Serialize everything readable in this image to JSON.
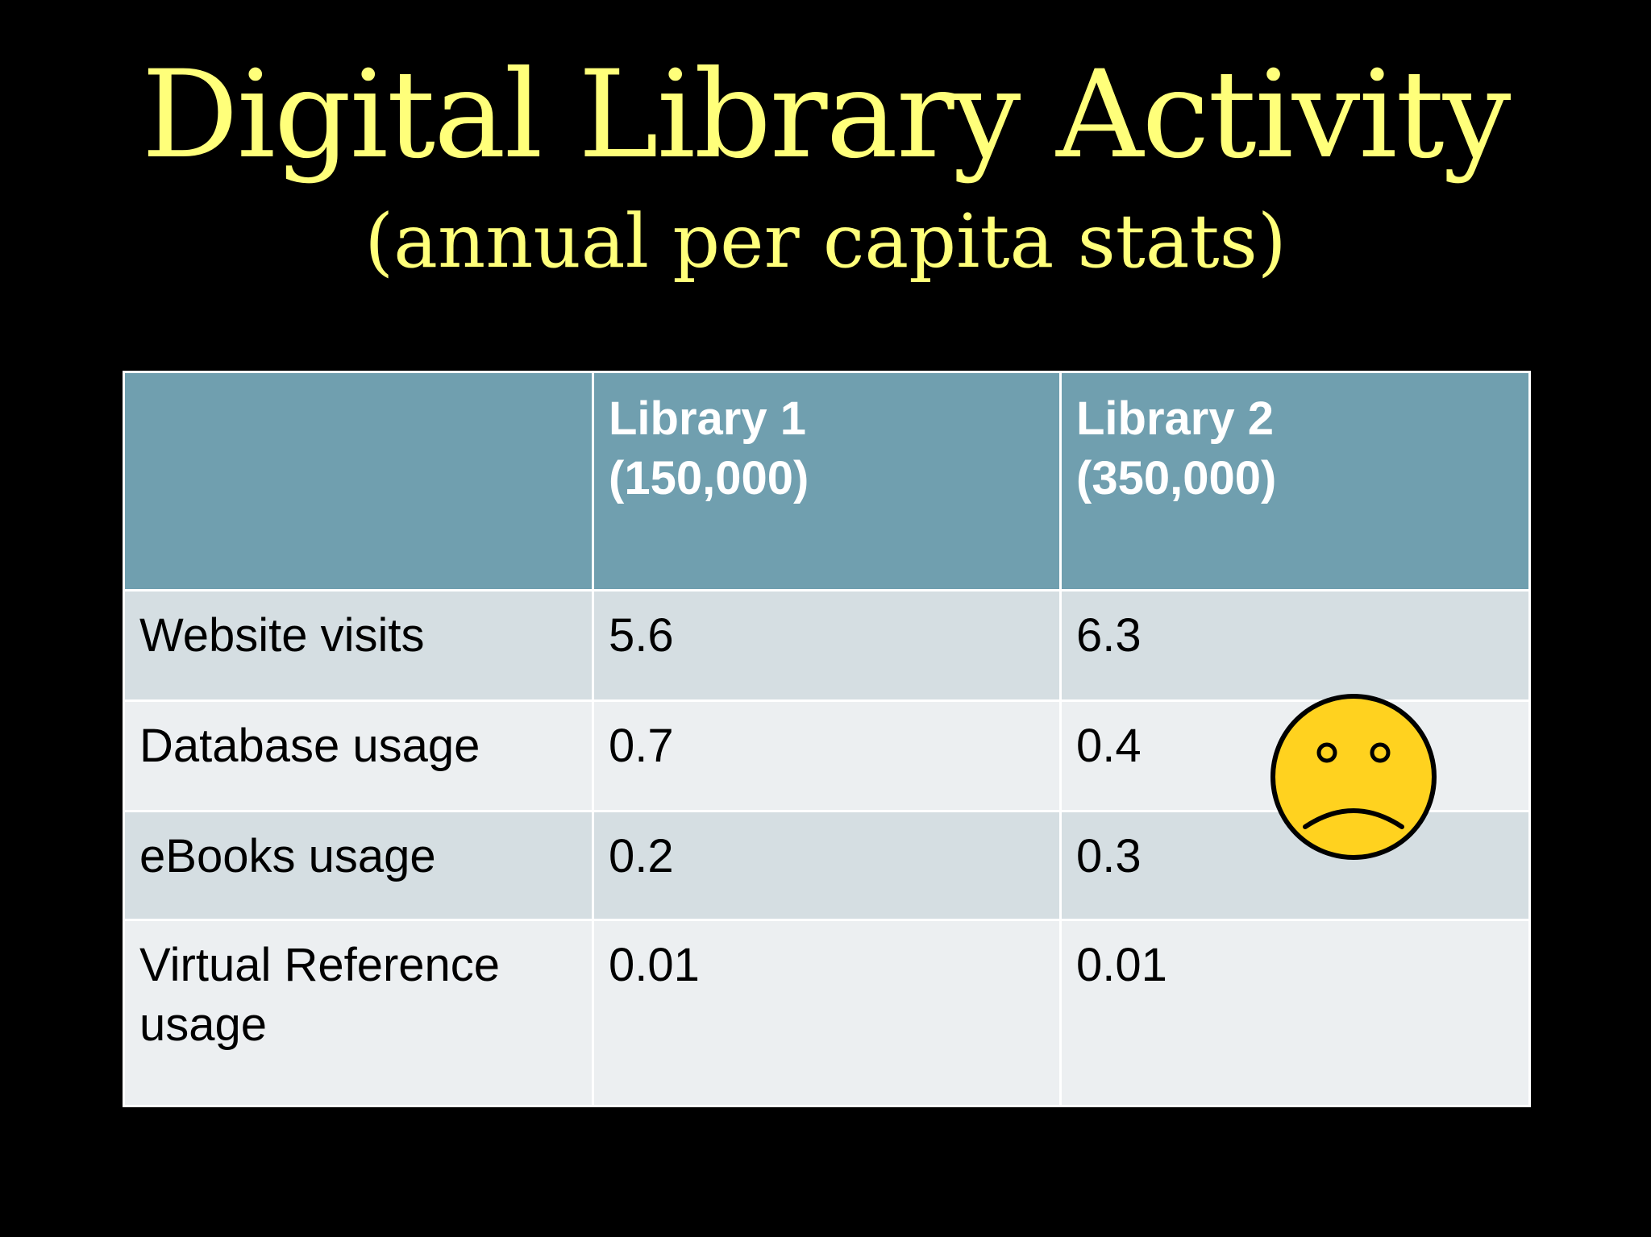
{
  "slide": {
    "title": "Digital Library Activity",
    "subtitle": "(annual per capita stats)"
  },
  "table": {
    "headers": [
      "",
      "Library 1\n(150,000)",
      "Library 2\n(350,000)"
    ],
    "header_lines": {
      "lib1_line1": "Library 1",
      "lib1_line2": "(150,000)",
      "lib2_line1": "Library 2",
      "lib2_line2": "(350,000)"
    },
    "rows": [
      {
        "metric": "Website visits",
        "library1": "5.6",
        "library2": "6.3"
      },
      {
        "metric": "Database usage",
        "library1": "0.7",
        "library2": "0.4"
      },
      {
        "metric": "eBooks usage",
        "library1": "0.2",
        "library2": "0.3"
      },
      {
        "metric_line1": "Virtual Reference",
        "metric_line2": "usage",
        "library1": "0.01",
        "library2": "0.01"
      }
    ]
  },
  "decor": {
    "icon": "frown-face-icon",
    "colors": {
      "face_fill": "#FFD21F",
      "outline": "#000000",
      "title_text": "#FFFF7A",
      "header_bg": "#709FAF",
      "row_dark": "#D5DEE2",
      "row_light": "#ECEFF1"
    }
  }
}
